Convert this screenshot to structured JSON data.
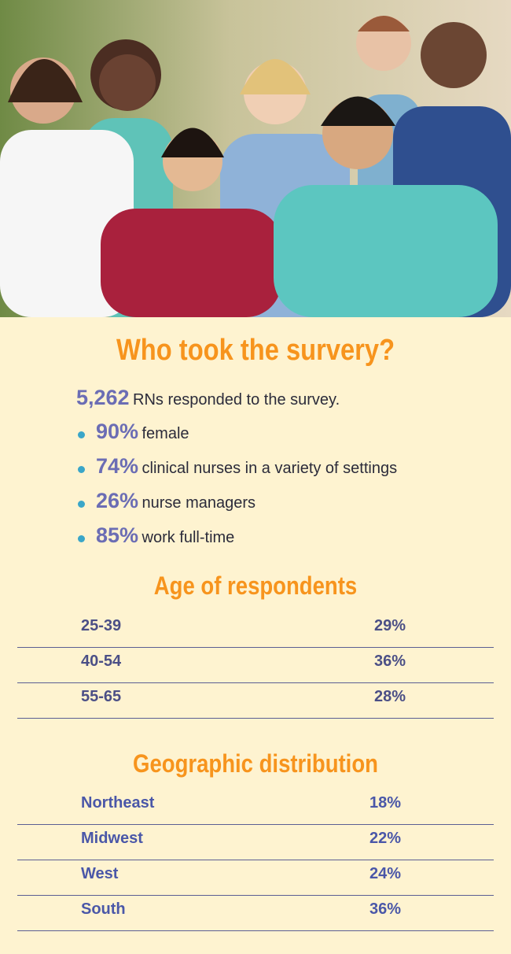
{
  "title": "Who took the survery?",
  "intro": {
    "number": "5,262",
    "text": "RNs responded to the survey."
  },
  "bullets": [
    {
      "number": "90%",
      "text": "female"
    },
    {
      "number": "74%",
      "text": "clinical nurses in a variety of settings"
    },
    {
      "number": "26%",
      "text": "nurse managers"
    },
    {
      "number": "85%",
      "text": "work full-time"
    }
  ],
  "age": {
    "title": "Age of respondents",
    "rows": [
      [
        "25-39",
        "29%"
      ],
      [
        "40-54",
        "36%"
      ],
      [
        "55-65",
        "28%"
      ]
    ]
  },
  "geography": {
    "title": "Geographic distribution",
    "rows": [
      [
        "Northeast",
        "18%"
      ],
      [
        "Midwest",
        "22%"
      ],
      [
        "West",
        "24%"
      ],
      [
        "South",
        "36%"
      ]
    ]
  }
}
